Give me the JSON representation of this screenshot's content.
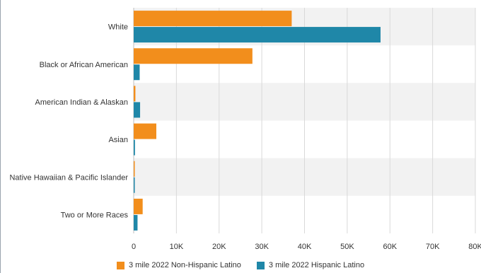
{
  "chart_data": {
    "type": "bar",
    "orientation": "horizontal",
    "categories": [
      "White",
      "Black or African American",
      "American Indian & Alaskan",
      "Asian",
      "Native Hawaiian & Pacific Islander",
      "Two or More Races"
    ],
    "series": [
      {
        "name": "3 mile 2022 Non-Hispanic Latino",
        "color": "#f28e1c",
        "values": [
          37000,
          27800,
          400,
          5300,
          100,
          2100
        ]
      },
      {
        "name": "3 mile 2022 Hispanic Latino",
        "color": "#1f87a8",
        "values": [
          57800,
          1400,
          1500,
          300,
          100,
          900
        ]
      }
    ],
    "xlim": [
      0,
      80000
    ],
    "xticks": [
      0,
      10000,
      20000,
      30000,
      40000,
      50000,
      60000,
      70000,
      80000
    ],
    "xtick_labels": [
      "0",
      "10K",
      "20K",
      "30K",
      "40K",
      "50K",
      "60K",
      "70K",
      "80K"
    ],
    "grid": true,
    "legend_position": "bottom"
  }
}
